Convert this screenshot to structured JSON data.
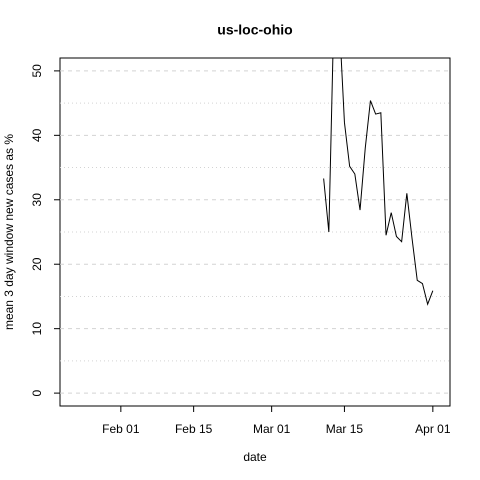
{
  "chart_data": {
    "type": "line",
    "title": "us-loc-ohio",
    "x_label": "date",
    "y_label": "mean  3  day window new cases as %",
    "x": [
      39,
      40,
      41,
      42,
      43,
      44,
      45,
      46,
      47,
      48,
      49,
      50,
      51,
      52,
      53,
      54,
      55,
      56,
      57,
      58,
      59,
      60
    ],
    "series": [
      {
        "name": "us-loc-ohio",
        "color": "#000000",
        "values": [
          33.3,
          25,
          60,
          58,
          42,
          35.2,
          34,
          28.4,
          38,
          45.4,
          43.3,
          43.5,
          24.5,
          28,
          24.3,
          23.5,
          31,
          24,
          17.5,
          17,
          13.8,
          15.9
        ]
      }
    ],
    "xlim": [
      -11.7,
      63.3
    ],
    "xticks": [
      {
        "value": 0,
        "label": "Feb 01"
      },
      {
        "value": 14,
        "label": "Feb 15"
      },
      {
        "value": 29,
        "label": "Mar 01"
      },
      {
        "value": 43,
        "label": "Mar 15"
      },
      {
        "value": 60,
        "label": "Apr 01"
      }
    ],
    "ylim": [
      -2,
      52
    ],
    "yticks": [
      0,
      10,
      20,
      30,
      40,
      50
    ],
    "minor_grid": [
      5,
      15,
      25,
      35,
      45
    ],
    "grid": true
  }
}
